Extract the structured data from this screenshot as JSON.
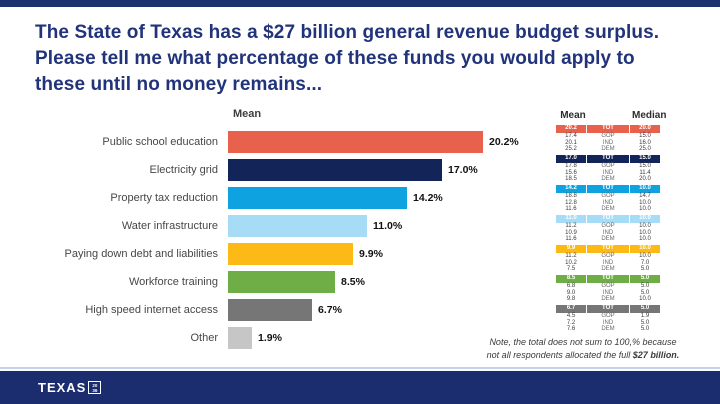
{
  "header": {
    "title": "The State of Texas has a $27 billion general revenue budget surplus. Please tell me what percentage of these funds you would apply to these until no money remains..."
  },
  "chart_data": {
    "type": "bar",
    "orientation": "horizontal",
    "title": "Mean",
    "categories": [
      "Public school education",
      "Electricity grid",
      "Property tax reduction",
      "Water infrastructure",
      "Paying down debt and liabilities",
      "Workforce training",
      "High speed internet access",
      "Other"
    ],
    "values": [
      20.2,
      17.0,
      14.2,
      11.0,
      9.9,
      8.5,
      6.7,
      1.9
    ],
    "value_labels": [
      "20.2%",
      "17.0%",
      "14.2%",
      "11.0%",
      "9.9%",
      "8.5%",
      "6.7%",
      "1.9%"
    ],
    "colors": [
      "#E8614D",
      "#132558",
      "#0FA2E0",
      "#A6DCF5",
      "#FDB916",
      "#6FAE46",
      "#767676",
      "#C6C6C6"
    ],
    "xlim": [
      0,
      21
    ],
    "breakdown_table": {
      "headers": [
        "Mean",
        "Median"
      ],
      "party_labels": [
        "TOT",
        "GOP",
        "IND",
        "DEM"
      ],
      "row_groups": [
        {
          "category": "Public school education",
          "color": "#E8614D",
          "rows": [
            [
              "20.2",
              "TOT",
              "20.0"
            ],
            [
              "17.4",
              "GOP",
              "15.0"
            ],
            [
              "20.1",
              "IND",
              "16.0"
            ],
            [
              "25.2",
              "DEM",
              "25.0"
            ]
          ]
        },
        {
          "category": "Electricity grid",
          "color": "#132558",
          "rows": [
            [
              "17.0",
              "TOT",
              "15.0"
            ],
            [
              "17.8",
              "GOP",
              "15.0"
            ],
            [
              "15.6",
              "IND",
              "11.4"
            ],
            [
              "18.5",
              "DEM",
              "20.0"
            ]
          ]
        },
        {
          "category": "Property tax reduction",
          "color": "#0FA2E0",
          "rows": [
            [
              "14.2",
              "TOT",
              "10.0"
            ],
            [
              "18.8",
              "GOP",
              "14.7"
            ],
            [
              "12.8",
              "IND",
              "10.0"
            ],
            [
              "11.6",
              "DEM",
              "10.0"
            ]
          ]
        },
        {
          "category": "Water infrastructure",
          "color": "#A6DCF5",
          "rows": [
            [
              "11.0",
              "TOT",
              "10.0"
            ],
            [
              "11.2",
              "GOP",
              "10.0"
            ],
            [
              "10.9",
              "IND",
              "10.0"
            ],
            [
              "11.6",
              "DEM",
              "10.0"
            ]
          ]
        },
        {
          "category": "Paying down debt and liabilities",
          "color": "#FDB916",
          "rows": [
            [
              "9.9",
              "TOT",
              "10.0"
            ],
            [
              "11.2",
              "GOP",
              "10.0"
            ],
            [
              "10.2",
              "IND",
              "7.0"
            ],
            [
              "7.5",
              "DEM",
              "5.0"
            ]
          ]
        },
        {
          "category": "Workforce training",
          "color": "#6FAE46",
          "rows": [
            [
              "8.5",
              "TOT",
              "5.0"
            ],
            [
              "6.8",
              "GOP",
              "5.0"
            ],
            [
              "9.0",
              "IND",
              "5.0"
            ],
            [
              "9.8",
              "DEM",
              "10.0"
            ]
          ]
        },
        {
          "category": "High speed internet access",
          "color": "#767676",
          "rows": [
            [
              "6.7",
              "TOT",
              "5.0"
            ],
            [
              "4.5",
              "GOP",
              "1.9"
            ],
            [
              "7.2",
              "IND",
              "5.0"
            ],
            [
              "7.6",
              "DEM",
              "5.0"
            ]
          ]
        }
      ]
    }
  },
  "note": {
    "line1": "Note, the total does not sum to 100,% because",
    "line2_text": "not all respondents allocated the full",
    "line2_bold": "$27 billion."
  },
  "footer": {
    "logo_text": "TEXAS",
    "logo_box_line1": "20",
    "logo_box_line2": "36"
  },
  "style": {
    "accent_navy": "#1E3272",
    "title_color": "#21337A",
    "footer_navy": "#1B2D6E"
  }
}
